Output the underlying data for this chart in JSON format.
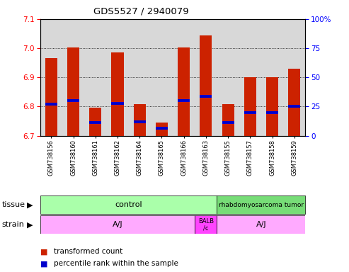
{
  "title": "GDS5527 / 2940079",
  "samples": [
    "GSM738156",
    "GSM738160",
    "GSM738161",
    "GSM738162",
    "GSM738164",
    "GSM738165",
    "GSM738166",
    "GSM738163",
    "GSM738155",
    "GSM738157",
    "GSM738158",
    "GSM738159"
  ],
  "bar_tops": [
    6.965,
    7.003,
    6.797,
    6.985,
    6.808,
    6.745,
    7.003,
    7.045,
    6.808,
    6.9,
    6.9,
    6.93
  ],
  "blue_values": [
    6.808,
    6.82,
    6.745,
    6.81,
    6.748,
    6.725,
    6.82,
    6.835,
    6.745,
    6.78,
    6.78,
    6.8
  ],
  "bar_bottom": 6.7,
  "ylim": [
    6.7,
    7.1
  ],
  "right_ylim": [
    0,
    100
  ],
  "right_yticks": [
    0,
    25,
    50,
    75,
    100
  ],
  "right_yticklabels": [
    "0",
    "25",
    "50",
    "75",
    "100%"
  ],
  "left_yticks": [
    6.7,
    6.8,
    6.9,
    7.0,
    7.1
  ],
  "bar_color": "#cc2200",
  "blue_color": "#0000cc",
  "bar_width": 0.55,
  "tissue_ctrl_color": "#aaffaa",
  "tissue_tumor_color": "#77dd77",
  "strain_aj_color": "#ffaaff",
  "strain_balb_color": "#ff44ff",
  "plot_bg_color": "#d8d8d8",
  "fig_bg_color": "#ffffff"
}
